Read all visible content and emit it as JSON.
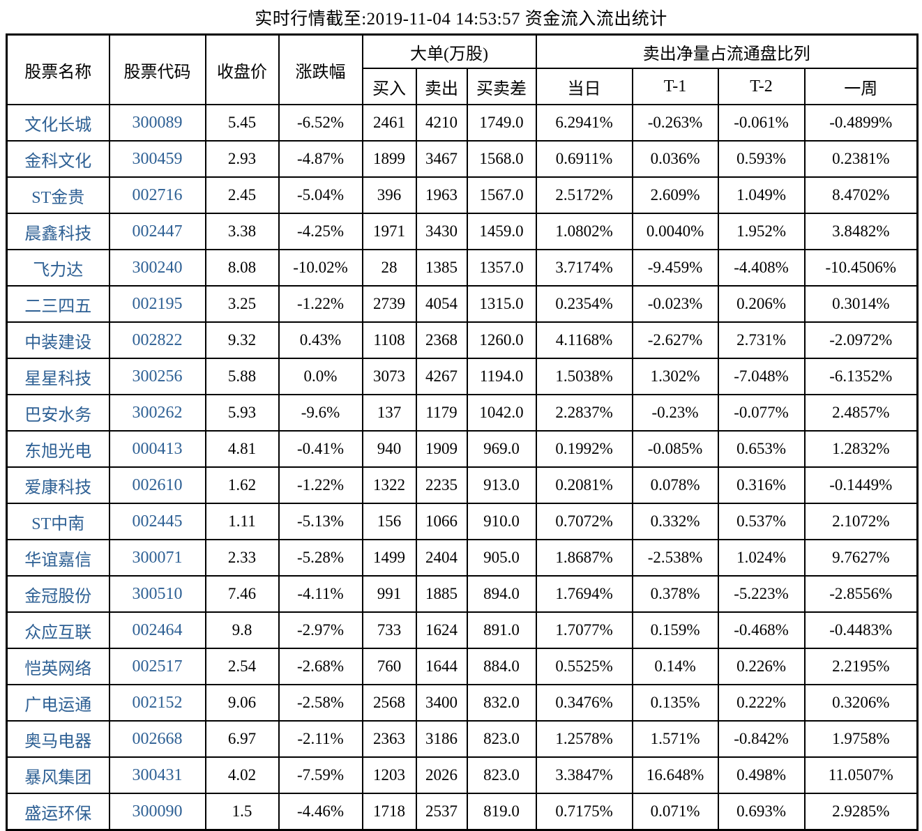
{
  "title": "实时行情截至:2019-11-04 14:53:57 资金流入流出统计",
  "colors": {
    "stock_link_blue": "#2e6094",
    "grid_border": "#000000",
    "text": "#000000",
    "background": "#ffffff"
  },
  "table": {
    "headers": {
      "name": "股票名称",
      "code": "股票代码",
      "close": "收盘价",
      "change": "涨跌幅",
      "big_order_group": "大单(万股)",
      "buy": "买入",
      "sell": "卖出",
      "diff": "买卖差",
      "ratio_group": "卖出净量占流通盘比列",
      "day": "当日",
      "t1": "T-1",
      "t2": "T-2",
      "week": "一周"
    },
    "rows": [
      [
        "文化长城",
        "300089",
        "5.45",
        "-6.52%",
        "2461",
        "4210",
        "1749.0",
        "6.2941%",
        "-0.263%",
        "-0.061%",
        "-0.4899%"
      ],
      [
        "金科文化",
        "300459",
        "2.93",
        "-4.87%",
        "1899",
        "3467",
        "1568.0",
        "0.6911%",
        "0.036%",
        "0.593%",
        "0.2381%"
      ],
      [
        "ST金贵",
        "002716",
        "2.45",
        "-5.04%",
        "396",
        "1963",
        "1567.0",
        "2.5172%",
        "2.609%",
        "1.049%",
        "8.4702%"
      ],
      [
        "晨鑫科技",
        "002447",
        "3.38",
        "-4.25%",
        "1971",
        "3430",
        "1459.0",
        "1.0802%",
        "0.0040%",
        "1.952%",
        "3.8482%"
      ],
      [
        "飞力达",
        "300240",
        "8.08",
        "-10.02%",
        "28",
        "1385",
        "1357.0",
        "3.7174%",
        "-9.459%",
        "-4.408%",
        "-10.4506%"
      ],
      [
        "二三四五",
        "002195",
        "3.25",
        "-1.22%",
        "2739",
        "4054",
        "1315.0",
        "0.2354%",
        "-0.023%",
        "0.206%",
        "0.3014%"
      ],
      [
        "中装建设",
        "002822",
        "9.32",
        "0.43%",
        "1108",
        "2368",
        "1260.0",
        "4.1168%",
        "-2.627%",
        "2.731%",
        "-2.0972%"
      ],
      [
        "星星科技",
        "300256",
        "5.88",
        "0.0%",
        "3073",
        "4267",
        "1194.0",
        "1.5038%",
        "1.302%",
        "-7.048%",
        "-6.1352%"
      ],
      [
        "巴安水务",
        "300262",
        "5.93",
        "-9.6%",
        "137",
        "1179",
        "1042.0",
        "2.2837%",
        "-0.23%",
        "-0.077%",
        "2.4857%"
      ],
      [
        "东旭光电",
        "000413",
        "4.81",
        "-0.41%",
        "940",
        "1909",
        "969.0",
        "0.1992%",
        "-0.085%",
        "0.653%",
        "1.2832%"
      ],
      [
        "爱康科技",
        "002610",
        "1.62",
        "-1.22%",
        "1322",
        "2235",
        "913.0",
        "0.2081%",
        "0.078%",
        "0.316%",
        "-0.1449%"
      ],
      [
        "ST中南",
        "002445",
        "1.11",
        "-5.13%",
        "156",
        "1066",
        "910.0",
        "0.7072%",
        "0.332%",
        "0.537%",
        "2.1072%"
      ],
      [
        "华谊嘉信",
        "300071",
        "2.33",
        "-5.28%",
        "1499",
        "2404",
        "905.0",
        "1.8687%",
        "-2.538%",
        "1.024%",
        "9.7627%"
      ],
      [
        "金冠股份",
        "300510",
        "7.46",
        "-4.11%",
        "991",
        "1885",
        "894.0",
        "1.7694%",
        "0.378%",
        "-5.223%",
        "-2.8556%"
      ],
      [
        "众应互联",
        "002464",
        "9.8",
        "-2.97%",
        "733",
        "1624",
        "891.0",
        "1.7077%",
        "0.159%",
        "-0.468%",
        "-0.4483%"
      ],
      [
        "恺英网络",
        "002517",
        "2.54",
        "-2.68%",
        "760",
        "1644",
        "884.0",
        "0.5525%",
        "0.14%",
        "0.226%",
        "2.2195%"
      ],
      [
        "广电运通",
        "002152",
        "9.06",
        "-2.58%",
        "2568",
        "3400",
        "832.0",
        "0.3476%",
        "0.135%",
        "0.222%",
        "0.3206%"
      ],
      [
        "奥马电器",
        "002668",
        "6.97",
        "-2.11%",
        "2363",
        "3186",
        "823.0",
        "1.2578%",
        "1.571%",
        "-0.842%",
        "1.9758%"
      ],
      [
        "暴风集团",
        "300431",
        "4.02",
        "-7.59%",
        "1203",
        "2026",
        "823.0",
        "3.3847%",
        "16.648%",
        "0.498%",
        "11.0507%"
      ],
      [
        "盛运环保",
        "300090",
        "1.5",
        "-4.46%",
        "1718",
        "2537",
        "819.0",
        "0.7175%",
        "0.071%",
        "0.693%",
        "2.9285%"
      ]
    ]
  }
}
